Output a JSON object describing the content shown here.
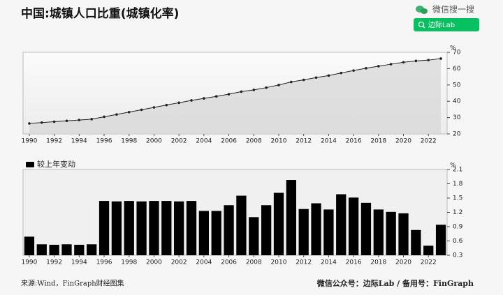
{
  "title": "中国:城镇人口比重(城镇化率)",
  "wechat": {
    "label": "微信搜一搜",
    "search": "边际Lab"
  },
  "footer": {
    "source": "来源:Wind，FinGraph财经图集",
    "account": "微信公众号：边际Lab / 备用号：FinGraph"
  },
  "chart_data": [
    {
      "type": "line",
      "unit": "%",
      "color": "#222222",
      "fill": "#d6d6d6",
      "x": [
        1990,
        1991,
        1992,
        1993,
        1994,
        1995,
        1996,
        1997,
        1998,
        1999,
        2000,
        2001,
        2002,
        2003,
        2004,
        2005,
        2006,
        2007,
        2008,
        2009,
        2010,
        2011,
        2012,
        2013,
        2014,
        2015,
        2016,
        2017,
        2018,
        2019,
        2020,
        2021,
        2022,
        2023
      ],
      "values": [
        26.41,
        26.94,
        27.46,
        27.99,
        28.51,
        29.04,
        30.48,
        31.91,
        33.35,
        34.78,
        36.22,
        37.66,
        39.09,
        40.53,
        41.76,
        42.99,
        44.34,
        45.89,
        46.99,
        48.34,
        49.95,
        51.83,
        53.1,
        54.49,
        55.75,
        57.33,
        58.84,
        60.24,
        61.5,
        62.71,
        63.89,
        64.72,
        65.22,
        66.16
      ],
      "xlim": [
        1989.5,
        2023.5
      ],
      "xticks": [
        1990,
        1992,
        1994,
        1996,
        1998,
        2000,
        2002,
        2004,
        2006,
        2008,
        2010,
        2012,
        2014,
        2016,
        2018,
        2020,
        2022
      ],
      "ylim": [
        20,
        70
      ],
      "yticks": [
        20,
        30,
        40,
        50,
        60,
        70
      ]
    },
    {
      "type": "bar",
      "unit": "%",
      "legend": "top-left",
      "x": [
        1990,
        1991,
        1992,
        1993,
        1994,
        1995,
        1996,
        1997,
        1998,
        1999,
        2000,
        2001,
        2002,
        2003,
        2004,
        2005,
        2006,
        2007,
        2008,
        2009,
        2010,
        2011,
        2012,
        2013,
        2014,
        2015,
        2016,
        2017,
        2018,
        2019,
        2020,
        2021,
        2022,
        2023
      ],
      "series": [
        {
          "name": "较上年变动",
          "color": "#000000",
          "values": [
            0.69,
            0.53,
            0.52,
            0.53,
            0.52,
            0.53,
            1.44,
            1.43,
            1.44,
            1.43,
            1.44,
            1.44,
            1.43,
            1.44,
            1.23,
            1.23,
            1.35,
            1.55,
            1.1,
            1.35,
            1.61,
            1.88,
            1.27,
            1.39,
            1.26,
            1.58,
            1.51,
            1.4,
            1.26,
            1.21,
            1.18,
            0.83,
            0.5,
            0.94
          ]
        }
      ],
      "xlim": [
        1989.5,
        2023.5
      ],
      "xticks": [
        1990,
        1992,
        1994,
        1996,
        1998,
        2000,
        2002,
        2004,
        2006,
        2008,
        2010,
        2012,
        2014,
        2016,
        2018,
        2020,
        2022
      ],
      "ylim": [
        0.3,
        2.1
      ],
      "yticks": [
        0.3,
        0.6,
        0.9,
        1.2,
        1.5,
        1.8,
        2.1
      ]
    }
  ]
}
